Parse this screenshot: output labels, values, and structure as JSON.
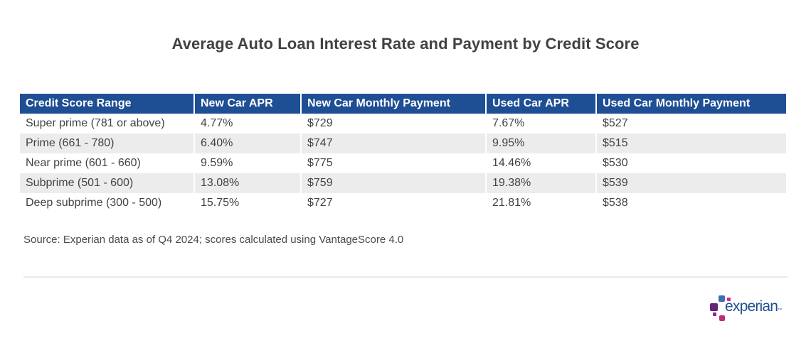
{
  "page": {
    "title": "Average Auto Loan Interest Rate and Payment by Credit Score",
    "source_note": "Source: Experian data as of Q4 2024; scores calculated using VantageScore 4.0"
  },
  "chart_data": {
    "type": "table",
    "title": "Average Auto Loan Interest Rate and Payment by Credit Score",
    "columns": [
      "Credit Score Range",
      "New Car APR",
      "New Car Monthly Payment",
      "Used Car APR",
      "Used Car Monthly Payment"
    ],
    "rows": [
      [
        "Super prime (781 or above)",
        "4.77%",
        "$729",
        "7.67%",
        "$527"
      ],
      [
        "Prime (661 - 780)",
        "6.40%",
        "$747",
        "9.95%",
        "$515"
      ],
      [
        "Near prime (601 - 660)",
        "9.59%",
        "$775",
        "14.46%",
        "$530"
      ],
      [
        "Subprime (501 - 600)",
        "13.08%",
        "$759",
        "19.38%",
        "$539"
      ],
      [
        "Deep subprime (300 - 500)",
        "15.75%",
        "$727",
        "21.81%",
        "$538"
      ]
    ],
    "source": "Source: Experian data as of Q4 2024; scores calculated using VantageScore 4.0",
    "layout": {
      "header_bg": "#1e4e94",
      "stripe_bg": "#ececec",
      "striped": true,
      "legend": "none"
    }
  },
  "branding": {
    "logo_text": "experian",
    "trademark": "™",
    "logo_blue": "#1d4f91",
    "square_colors": [
      "#406eb3",
      "#d82b80",
      "#632678",
      "#982881",
      "#ba2f7d"
    ]
  }
}
